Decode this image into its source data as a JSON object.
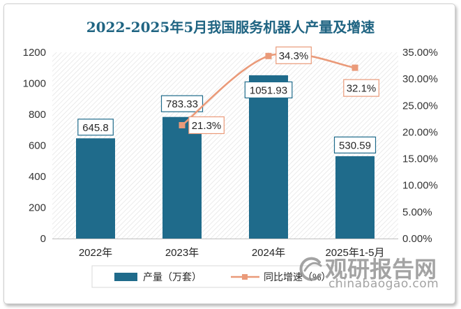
{
  "chart_data": {
    "type": "bar",
    "title": "2022-2025年5月我国服务机器人产量及增速",
    "categories": [
      "2022年",
      "2023年",
      "2024年",
      "2025年1-5月"
    ],
    "series": [
      {
        "name": "产量（万套）",
        "type": "bar",
        "values": [
          645.8,
          783.33,
          1051.93,
          530.59
        ],
        "data_labels": [
          "645.8",
          "783.33",
          "1051.93",
          "530.59"
        ],
        "color": "#1f6b8b"
      },
      {
        "name": "同比增速（%）",
        "type": "line",
        "smooth": true,
        "values": [
          null,
          21.3,
          34.3,
          32.1
        ],
        "data_labels": [
          null,
          "21.3%",
          "34.3%",
          "32.1%"
        ],
        "color": "#ea9a79"
      }
    ],
    "y_left": {
      "ylim": [
        0,
        1200
      ],
      "ticks": [
        0,
        200,
        400,
        600,
        800,
        1000,
        1200
      ],
      "tick_labels": [
        "0",
        "200",
        "400",
        "600",
        "800",
        "1000",
        "1200"
      ]
    },
    "y_right": {
      "ylim": [
        0,
        35
      ],
      "ticks": [
        0,
        5,
        10,
        15,
        20,
        25,
        30,
        35
      ],
      "tick_labels": [
        "0.00%",
        "5.00%",
        "10.00%",
        "15.00%",
        "20.00%",
        "25.00%",
        "30.00%",
        "35.00%"
      ]
    },
    "legend": "bottom",
    "grid": false
  },
  "watermark": {
    "brand": "观研报告网",
    "site": "chinabaogao.com"
  }
}
